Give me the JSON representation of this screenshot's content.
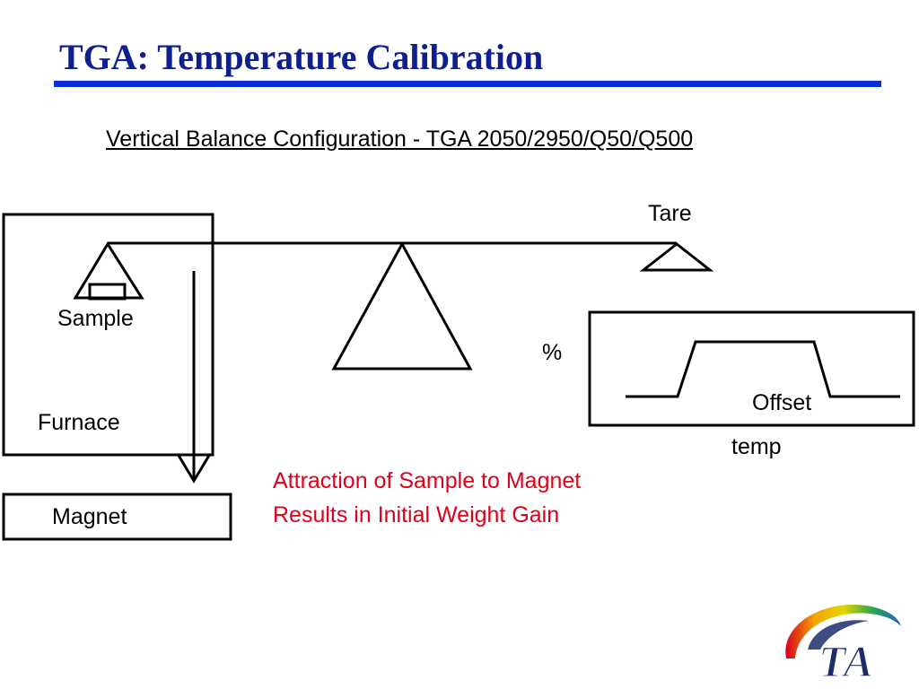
{
  "slide": {
    "title": "TGA: Temperature Calibration",
    "subtitle": "Vertical Balance Configuration - TGA 2050/2950/Q50/Q500"
  },
  "diagram": {
    "labels": {
      "tare": "Tare",
      "sample": "Sample",
      "furnace": "Furnace",
      "magnet": "Magnet",
      "percent": "%",
      "offset": "Offset",
      "temp": "temp"
    },
    "note": {
      "line1": "Attraction of Sample to Magnet",
      "line2": "Results in Initial Weight Gain"
    }
  },
  "logo": {
    "text": "TA"
  },
  "colors": {
    "title": "#0f1f8f",
    "rule": "#0a2fd6",
    "note": "#e0001b",
    "line": "#000000",
    "logo_navy": "#1c2d6b"
  }
}
